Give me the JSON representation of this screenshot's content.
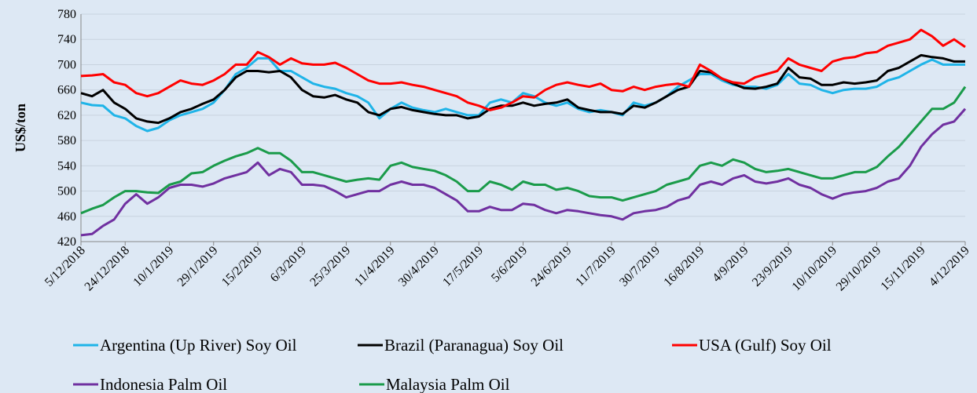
{
  "chart_data": {
    "type": "line",
    "y_label": "US$/ton",
    "categories": [
      "5/12/2018",
      null,
      null,
      null,
      "24/12/2018",
      null,
      null,
      null,
      "10/1/2019",
      null,
      null,
      null,
      "29/1/2019",
      null,
      null,
      null,
      "15/2/2019",
      null,
      null,
      null,
      "6/3/2019",
      null,
      null,
      null,
      "25/3/2019",
      null,
      null,
      null,
      "11/4/2019",
      null,
      null,
      null,
      "30/4/2019",
      null,
      null,
      null,
      "17/5/2019",
      null,
      null,
      null,
      "5/6/2019",
      null,
      null,
      null,
      "24/6/2019",
      null,
      null,
      null,
      "11/7/2019",
      null,
      null,
      null,
      "30/7/2019",
      null,
      null,
      null,
      "16/8/2019",
      null,
      null,
      null,
      "4/9/2019",
      null,
      null,
      null,
      "23/9/2019",
      null,
      null,
      null,
      "10/10/2019",
      null,
      null,
      null,
      "29/10/2019",
      null,
      null,
      null,
      "15/11/2019",
      null,
      null,
      null,
      "4/12/2019"
    ],
    "series": [
      {
        "name": "Argentina (Up River) Soy Oil",
        "color": "#1fb4e8",
        "values": [
          640,
          636,
          635,
          620,
          615,
          603,
          595,
          600,
          612,
          620,
          625,
          630,
          640,
          660,
          685,
          695,
          710,
          710,
          690,
          690,
          680,
          670,
          665,
          662,
          655,
          650,
          640,
          615,
          630,
          640,
          632,
          628,
          625,
          630,
          625,
          620,
          620,
          640,
          645,
          640,
          655,
          650,
          640,
          635,
          640,
          630,
          625,
          628,
          625,
          620,
          640,
          635,
          640,
          650,
          665,
          675,
          685,
          685,
          675,
          668,
          665,
          665,
          662,
          668,
          685,
          670,
          668,
          660,
          655,
          660,
          662,
          662,
          665,
          675,
          680,
          690,
          700,
          708,
          700,
          700,
          700
        ]
      },
      {
        "name": "Brazil (Paranagua) Soy Oil",
        "color": "#000000",
        "values": [
          655,
          650,
          660,
          640,
          630,
          615,
          610,
          608,
          615,
          625,
          630,
          638,
          645,
          660,
          680,
          690,
          690,
          688,
          690,
          680,
          660,
          650,
          648,
          652,
          645,
          640,
          625,
          620,
          630,
          633,
          628,
          625,
          622,
          620,
          620,
          615,
          618,
          630,
          635,
          635,
          640,
          635,
          638,
          640,
          645,
          632,
          628,
          625,
          625,
          622,
          635,
          632,
          640,
          650,
          660,
          665,
          690,
          688,
          678,
          670,
          663,
          662,
          665,
          670,
          695,
          680,
          678,
          668,
          668,
          672,
          670,
          672,
          675,
          690,
          695,
          705,
          715,
          712,
          710,
          705,
          705
        ]
      },
      {
        "name": "USA (Gulf) Soy Oil",
        "color": "#ff0000",
        "values": [
          682,
          683,
          685,
          672,
          668,
          655,
          650,
          655,
          665,
          675,
          670,
          668,
          675,
          685,
          700,
          700,
          720,
          712,
          700,
          710,
          702,
          700,
          700,
          703,
          695,
          685,
          675,
          670,
          670,
          672,
          668,
          665,
          660,
          655,
          650,
          640,
          635,
          628,
          632,
          640,
          650,
          648,
          660,
          668,
          672,
          668,
          665,
          670,
          660,
          658,
          665,
          660,
          665,
          668,
          670,
          665,
          700,
          690,
          678,
          672,
          670,
          680,
          685,
          690,
          710,
          700,
          695,
          690,
          705,
          710,
          712,
          718,
          720,
          730,
          735,
          740,
          755,
          745,
          730,
          740,
          728
        ]
      },
      {
        "name": "Indonesia Palm Oil",
        "color": "#7030a0",
        "values": [
          430,
          432,
          445,
          455,
          480,
          495,
          480,
          490,
          505,
          510,
          510,
          507,
          512,
          520,
          525,
          530,
          545,
          525,
          535,
          530,
          510,
          510,
          508,
          500,
          490,
          495,
          500,
          500,
          510,
          515,
          510,
          510,
          505,
          495,
          485,
          468,
          468,
          475,
          470,
          470,
          480,
          478,
          470,
          465,
          470,
          468,
          465,
          462,
          460,
          455,
          465,
          468,
          470,
          475,
          485,
          490,
          510,
          515,
          510,
          520,
          525,
          515,
          512,
          515,
          520,
          510,
          505,
          495,
          488,
          495,
          498,
          500,
          505,
          515,
          520,
          540,
          570,
          590,
          605,
          610,
          630
        ]
      },
      {
        "name": "Malaysia Palm Oil",
        "color": "#1a9b4a",
        "values": [
          465,
          472,
          478,
          490,
          500,
          500,
          498,
          497,
          510,
          515,
          528,
          530,
          540,
          548,
          555,
          560,
          568,
          560,
          560,
          548,
          530,
          530,
          525,
          520,
          515,
          518,
          520,
          518,
          540,
          545,
          538,
          535,
          532,
          525,
          515,
          500,
          500,
          515,
          510,
          502,
          515,
          510,
          510,
          502,
          505,
          500,
          492,
          490,
          490,
          485,
          490,
          495,
          500,
          510,
          515,
          520,
          540,
          545,
          540,
          550,
          545,
          535,
          530,
          532,
          535,
          530,
          525,
          520,
          520,
          525,
          530,
          530,
          538,
          555,
          570,
          590,
          610,
          630,
          630,
          640,
          665
        ]
      }
    ],
    "ylim": [
      420,
      780
    ],
    "yticks": [
      420,
      460,
      500,
      540,
      580,
      620,
      660,
      700,
      740,
      780
    ],
    "grid": true
  }
}
